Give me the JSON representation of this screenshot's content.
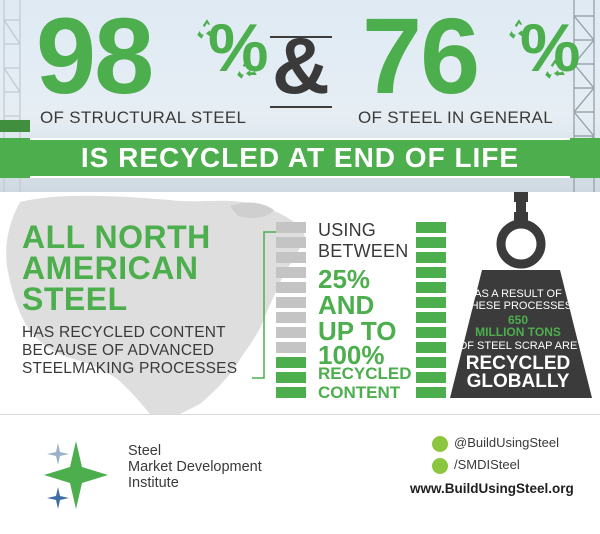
{
  "stat_left": {
    "number": "98",
    "symbol": "%",
    "caption": "OF STRUCTURAL STEEL"
  },
  "ampersand": "&",
  "stat_right": {
    "number": "76",
    "symbol": "%",
    "caption": "OF STEEL IN GENERAL"
  },
  "banner": "IS RECYCLED AT END OF LIFE",
  "north_america": {
    "title_lines": [
      "ALL NORTH",
      "AMERICAN",
      "STEEL"
    ],
    "sub_lines": [
      "HAS RECYCLED CONTENT",
      "BECAUSE OF ADVANCED",
      "STEELMAKING PROCESSES"
    ]
  },
  "content": {
    "intro_lines": [
      "USING",
      "BETWEEN"
    ],
    "low": "25%",
    "connector_lines": [
      "AND",
      "UP TO"
    ],
    "high": "100%",
    "tail_lines": [
      "RECYCLED",
      "CONTENT"
    ],
    "left_bar_green_fraction": 0.25,
    "right_bar_green_fraction": 1.0
  },
  "weight": {
    "line1": "AS A RESULT OF",
    "line2": "THESE PROCESSES",
    "amount": "650",
    "unit": "MILLION TONS",
    "line3": "OF STEEL SCRAP ARE",
    "big1": "RECYCLED",
    "big2": "GLOBALLY"
  },
  "footer": {
    "org_lines": [
      "Steel",
      "Market Development",
      "Institute"
    ],
    "twitter": "@BuildUsingSteel",
    "facebook": "/SMDISteel",
    "website": "www.BuildUsingSteel.org"
  },
  "colors": {
    "green": "#4dae4d",
    "dark": "#3a3a3a",
    "bar_gray": "#c4c4c4",
    "weight": "#3b3b3b"
  },
  "icons": [
    "recycle-icon",
    "twitter-icon",
    "facebook-icon",
    "star-logo-icon"
  ]
}
